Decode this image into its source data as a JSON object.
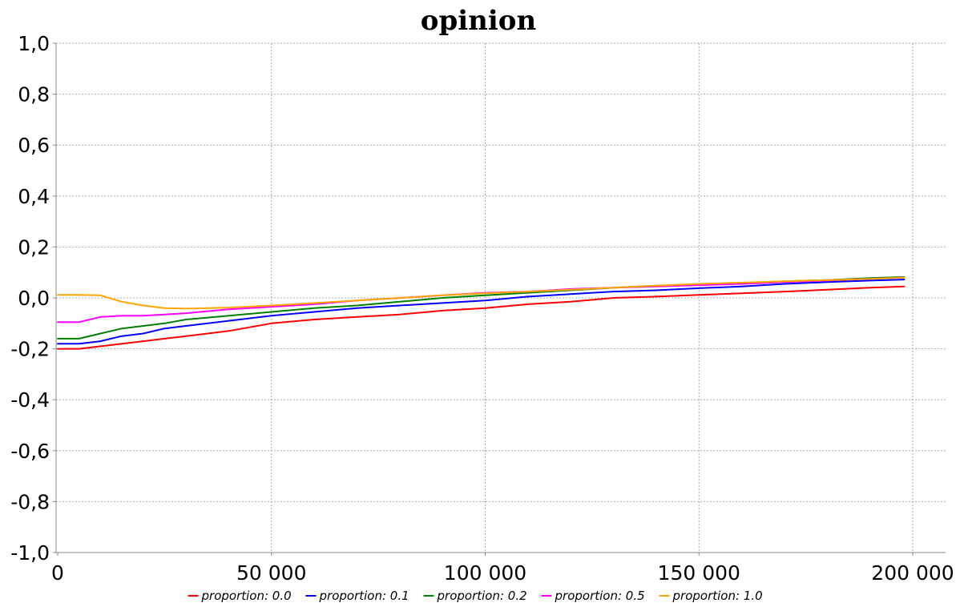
{
  "chart_data": {
    "type": "line",
    "title": "opinion",
    "xlabel": "",
    "ylabel": "",
    "xlim": [
      0,
      205000
    ],
    "ylim": [
      -1.0,
      1.0
    ],
    "x_ticks": [
      {
        "value": 0,
        "label": "0"
      },
      {
        "value": 50000,
        "label": "50 000"
      },
      {
        "value": 100000,
        "label": "100 000"
      },
      {
        "value": 150000,
        "label": "150 000"
      },
      {
        "value": 200000,
        "label": "200 000"
      }
    ],
    "y_ticks": [
      {
        "value": 1.0,
        "label": "1,0"
      },
      {
        "value": 0.8,
        "label": "0,8"
      },
      {
        "value": 0.6,
        "label": "0,6"
      },
      {
        "value": 0.4,
        "label": "0,4"
      },
      {
        "value": 0.2,
        "label": "0,2"
      },
      {
        "value": 0.0,
        "label": "0,0"
      },
      {
        "value": -0.2,
        "label": "-0,2"
      },
      {
        "value": -0.4,
        "label": "-0,4"
      },
      {
        "value": -0.6,
        "label": "-0,6"
      },
      {
        "value": -0.8,
        "label": "-0,8"
      },
      {
        "value": -1.0,
        "label": "-1,0"
      }
    ],
    "grid": true,
    "legend_position": "bottom",
    "x": [
      0,
      5000,
      10000,
      15000,
      20000,
      25000,
      30000,
      40000,
      50000,
      60000,
      70000,
      80000,
      90000,
      100000,
      110000,
      120000,
      130000,
      140000,
      150000,
      160000,
      170000,
      180000,
      190000,
      198000
    ],
    "series": [
      {
        "name": "proportion: 0.0",
        "color": "#ff0000",
        "values": [
          -0.2,
          -0.2,
          -0.19,
          -0.18,
          -0.17,
          -0.16,
          -0.15,
          -0.13,
          -0.1,
          -0.085,
          -0.075,
          -0.065,
          -0.05,
          -0.04,
          -0.025,
          -0.015,
          0.0,
          0.005,
          0.012,
          0.018,
          0.025,
          0.032,
          0.04,
          0.045
        ]
      },
      {
        "name": "proportion: 0.1",
        "color": "#0000ff",
        "values": [
          -0.18,
          -0.18,
          -0.17,
          -0.15,
          -0.14,
          -0.12,
          -0.11,
          -0.09,
          -0.07,
          -0.055,
          -0.04,
          -0.03,
          -0.02,
          -0.01,
          0.005,
          0.015,
          0.025,
          0.03,
          0.038,
          0.045,
          0.055,
          0.062,
          0.068,
          0.072
        ]
      },
      {
        "name": "proportion: 0.2",
        "color": "#008000",
        "values": [
          -0.16,
          -0.16,
          -0.14,
          -0.12,
          -0.11,
          -0.1,
          -0.085,
          -0.07,
          -0.055,
          -0.04,
          -0.03,
          -0.015,
          0.0,
          0.01,
          0.02,
          0.03,
          0.04,
          0.048,
          0.052,
          0.058,
          0.065,
          0.07,
          0.078,
          0.082
        ]
      },
      {
        "name": "proportion: 0.5",
        "color": "#ff00ff",
        "values": [
          -0.095,
          -0.095,
          -0.075,
          -0.07,
          -0.07,
          -0.065,
          -0.06,
          -0.045,
          -0.035,
          -0.025,
          -0.01,
          0.0,
          0.01,
          0.02,
          0.025,
          0.035,
          0.04,
          0.045,
          0.05,
          0.055,
          0.062,
          0.068,
          0.075,
          0.08
        ]
      },
      {
        "name": "proportion: 1.0",
        "color": "#ffa500",
        "values": [
          0.012,
          0.012,
          0.01,
          -0.015,
          -0.03,
          -0.04,
          -0.042,
          -0.038,
          -0.03,
          -0.02,
          -0.01,
          0.0,
          0.01,
          0.018,
          0.025,
          0.032,
          0.04,
          0.048,
          0.055,
          0.06,
          0.065,
          0.07,
          0.075,
          0.08
        ]
      }
    ]
  }
}
